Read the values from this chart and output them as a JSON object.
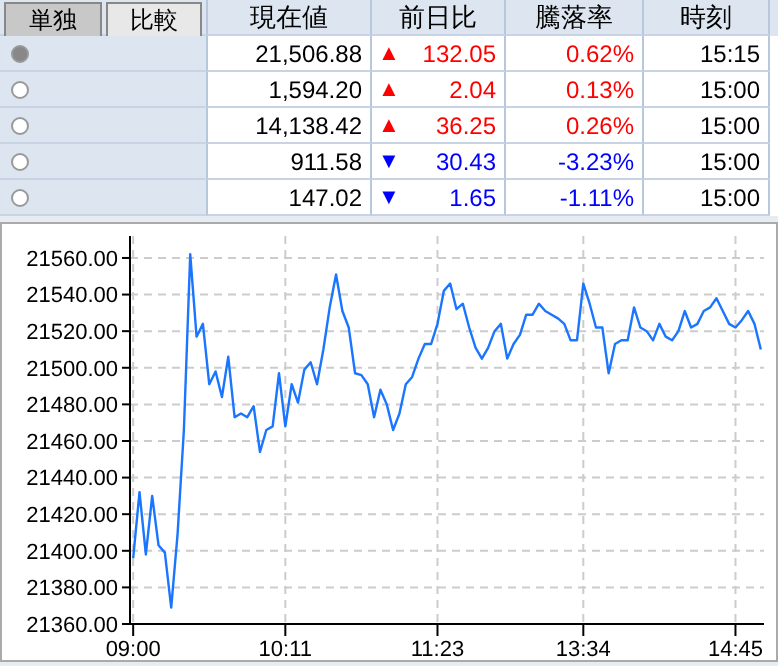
{
  "chart_data": [
    {
      "type": "other",
      "annotations": [
        "単独",
        "比較",
        "現在値",
        "前日比",
        "騰落率",
        "時刻",
        "21,506.88",
        "▲ 132.05",
        "0.62%",
        "15:15",
        "1,594.20",
        "▲ 2.04",
        "0.13%",
        "15:00",
        "14,138.42",
        "▲ 36.25",
        "0.26%",
        "15:00",
        "911.58",
        "▼ 30.43",
        "-3.23%",
        "15:00",
        "147.02",
        "▼ 1.65",
        "-1.11%",
        "15:00"
      ],
      "colors": [
        "#000000",
        "#ff0000",
        "#ff0000",
        "#000000",
        "#000000",
        "#ff0000",
        "#ff0000",
        "#000000",
        "#000000",
        "#ff0000",
        "#ff0000",
        "#000000",
        "#000000",
        "#0000ff",
        "#0000ff",
        "#000000",
        "#000000",
        "#0000ff",
        "#0000ff",
        "#000000"
      ]
    },
    {
      "type": "line",
      "grid": true,
      "line_style": "solid",
      "marker": "none",
      "color": "#1a75ff",
      "categories": [
        "09:00",
        null,
        null,
        null,
        null,
        null,
        null,
        null,
        null,
        null,
        null,
        null,
        null,
        null,
        null,
        null,
        null,
        null,
        null,
        null,
        null,
        null,
        null,
        null,
        "10:11",
        null,
        null,
        null,
        null,
        null,
        null,
        null,
        null,
        null,
        null,
        null,
        null,
        null,
        null,
        null,
        null,
        null,
        null,
        null,
        null,
        null,
        null,
        null,
        "11:23",
        null,
        null,
        null,
        null,
        null,
        null,
        null,
        null,
        null,
        null,
        null,
        null,
        null,
        null,
        null,
        null,
        null,
        null,
        null,
        null,
        null,
        null,
        "13:34",
        null,
        null,
        null,
        null,
        null,
        null,
        null,
        null,
        null,
        null,
        null,
        null,
        null,
        null,
        null,
        null,
        null,
        null,
        null,
        null,
        null,
        null,
        null,
        "14:45",
        null,
        null,
        null,
        null
      ],
      "values": [
        21396,
        21432,
        21398,
        21430,
        21403,
        21399,
        21369,
        21409,
        21466,
        21562,
        21517,
        21524,
        21491,
        21498,
        21484,
        21506,
        21473,
        21475,
        21473,
        21479,
        21454,
        21466,
        21468,
        21497,
        21468,
        21491,
        21481,
        21499,
        21503,
        21491,
        21510,
        21533,
        21551,
        21531,
        21522,
        21497,
        21496,
        21491,
        21473,
        21488,
        21480,
        21466,
        21475,
        21491,
        21495,
        21505,
        21513,
        21513,
        21524,
        21542,
        21546,
        21532,
        21535,
        21522,
        21511,
        21505,
        21511,
        21520,
        21524,
        21505,
        21513,
        21518,
        21529,
        21529,
        21535,
        21531,
        21529,
        21527,
        21524,
        21515,
        21515,
        21546,
        21535,
        21522,
        21522,
        21497,
        21513,
        21515,
        21515,
        21533,
        21522,
        21520,
        21515,
        21524,
        21517,
        21515,
        21520,
        21531,
        21522,
        21524,
        21531,
        21533,
        21538,
        21531,
        21524,
        21522,
        21526,
        21531,
        21524,
        21510
      ],
      "ylim": [
        21360,
        21572
      ],
      "yticks": [
        {
          "value": 21360,
          "label": "21360.00"
        },
        {
          "value": 21380,
          "label": "21380.00"
        },
        {
          "value": 21400,
          "label": "21400.00"
        },
        {
          "value": 21420,
          "label": "21420.00"
        },
        {
          "value": 21440,
          "label": "21440.00"
        },
        {
          "value": 21460,
          "label": "21460.00"
        },
        {
          "value": 21480,
          "label": "21480.00"
        },
        {
          "value": 21500,
          "label": "21500.00"
        },
        {
          "value": 21520,
          "label": "21520.00"
        },
        {
          "value": 21540,
          "label": "21540.00"
        },
        {
          "value": 21560,
          "label": "21560.00"
        }
      ]
    }
  ]
}
